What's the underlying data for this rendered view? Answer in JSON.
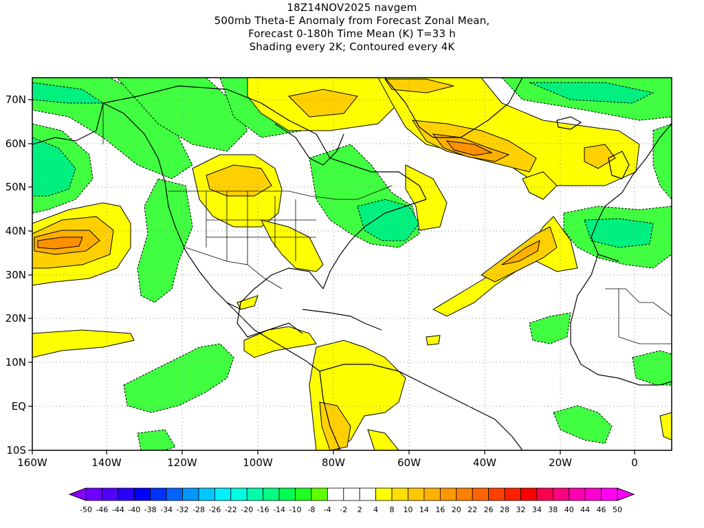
{
  "title": {
    "line1": "18Z14NOV2025 navgem",
    "line2": "500mb Theta-E Anomaly from Forecast Zonal Mean,",
    "line3": "Forecast 0-180h Time Mean (K) T=33 h",
    "line4": "Shading every 2K; Contoured every 4K"
  },
  "axes": {
    "lon_labels": [
      "160W",
      "140W",
      "120W",
      "100W",
      "80W",
      "60W",
      "40W",
      "20W",
      "0"
    ],
    "lon_values": [
      -160,
      -140,
      -120,
      -100,
      -80,
      -60,
      -40,
      -20,
      0
    ],
    "lat_labels": [
      "70N",
      "60N",
      "50N",
      "40N",
      "30N",
      "20N",
      "10N",
      "EQ",
      "10S"
    ],
    "lat_values": [
      70,
      60,
      50,
      40,
      30,
      20,
      10,
      0,
      -10
    ],
    "lon_range": [
      -160,
      10
    ],
    "lat_range": [
      -10,
      75
    ],
    "grid": "dotted"
  },
  "colorbar": {
    "labels": [
      "-50",
      "-46",
      "-44",
      "-40",
      "-38",
      "-34",
      "-32",
      "-28",
      "-26",
      "-22",
      "-20",
      "-16",
      "-14",
      "-10",
      "-8",
      "-4",
      "-2",
      "2",
      "4",
      "8",
      "10",
      "14",
      "16",
      "20",
      "22",
      "26",
      "28",
      "32",
      "34",
      "38",
      "40",
      "44",
      "46",
      "50"
    ],
    "colors": [
      "#8a00ff",
      "#6e00ff",
      "#5000ff",
      "#2a00ff",
      "#0000ff",
      "#0032ff",
      "#0064ff",
      "#0096ff",
      "#00c8ff",
      "#00f0ff",
      "#00ffe0",
      "#00ffaa",
      "#00ff80",
      "#00ff50",
      "#20ff20",
      "#60ff00",
      "#ffffff",
      "#ffffff",
      "#ffffff",
      "#ffff00",
      "#ffe000",
      "#ffc800",
      "#ffb000",
      "#ff9800",
      "#ff8000",
      "#ff6400",
      "#ff4000",
      "#ff2000",
      "#ff0000",
      "#ff0050",
      "#ff0080",
      "#ff00b0",
      "#ff00d0",
      "#ff00f0",
      "#ff00ff"
    ]
  },
  "map_colors": {
    "neg_light": "#40ff40",
    "neg_mid": "#00f080",
    "neg_strong": "#00e0a0",
    "pos_light": "#ffff00",
    "pos_mid": "#ffd000",
    "pos_strong": "#ffb000",
    "pos_stronger": "#ff9000"
  }
}
